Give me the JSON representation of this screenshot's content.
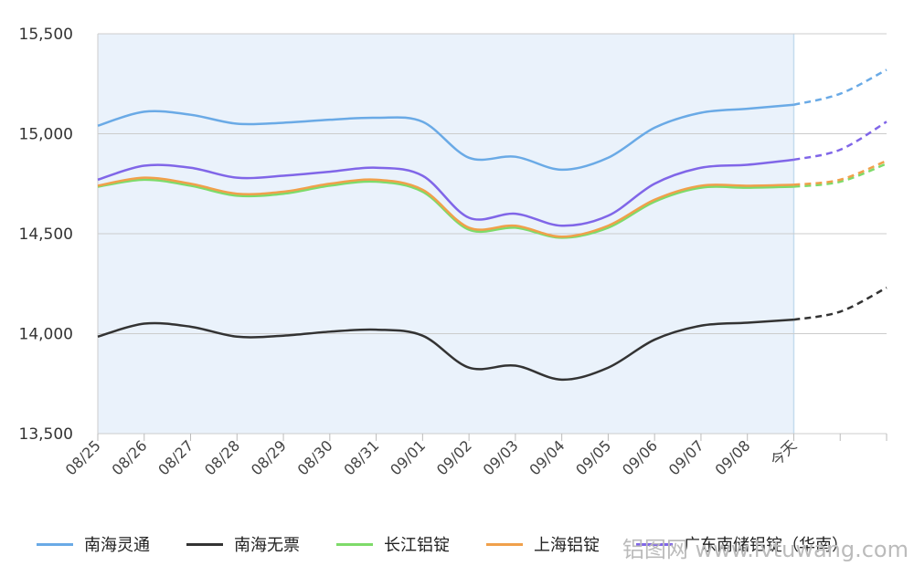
{
  "chart_data": {
    "type": "line",
    "categories": [
      "08/25",
      "08/26",
      "08/27",
      "08/28",
      "08/29",
      "08/30",
      "08/31",
      "09/01",
      "09/02",
      "09/03",
      "09/04",
      "09/05",
      "09/06",
      "09/07",
      "09/08",
      "今天",
      "",
      ""
    ],
    "ylim": [
      13500,
      15500
    ],
    "yticks": [
      13500,
      14000,
      14500,
      15000,
      15500
    ],
    "ytick_labels": [
      "13,500",
      "14,000",
      "14,500",
      "15,000",
      "15,500"
    ],
    "today_index": 15,
    "highlight_range": [
      "08/25",
      "今天"
    ],
    "forecast_from_index": 15,
    "grid": "horizontal",
    "legend_position": "bottom",
    "series": [
      {
        "name": "南海灵通",
        "color": "#6aaae6",
        "values": [
          15040,
          15110,
          15095,
          15050,
          15055,
          15070,
          15080,
          15060,
          14880,
          14885,
          14820,
          14880,
          15030,
          15105,
          15125,
          15145,
          15200,
          15320
        ]
      },
      {
        "name": "南海无票",
        "color": "#333333",
        "values": [
          13985,
          14050,
          14035,
          13985,
          13990,
          14010,
          14020,
          13990,
          13830,
          13840,
          13770,
          13830,
          13970,
          14040,
          14055,
          14070,
          14110,
          14230
        ]
      },
      {
        "name": "长江铝锭",
        "color": "#7edb6a",
        "values": [
          14735,
          14770,
          14740,
          14690,
          14700,
          14740,
          14760,
          14710,
          14520,
          14530,
          14480,
          14530,
          14660,
          14730,
          14730,
          14735,
          14760,
          14850
        ]
      },
      {
        "name": "上海铝锭",
        "color": "#f0a04b",
        "values": [
          14740,
          14780,
          14750,
          14700,
          14710,
          14750,
          14770,
          14720,
          14530,
          14540,
          14485,
          14540,
          14670,
          14740,
          14740,
          14745,
          14770,
          14865
        ]
      },
      {
        "name": "广东南储铝锭（华南）",
        "color": "#8066e8",
        "values": [
          14770,
          14840,
          14830,
          14780,
          14790,
          14810,
          14830,
          14790,
          14580,
          14600,
          14540,
          14590,
          14750,
          14830,
          14845,
          14870,
          14920,
          15060
        ]
      }
    ]
  },
  "watermark": "铝图网 www.lvtuwang.com"
}
